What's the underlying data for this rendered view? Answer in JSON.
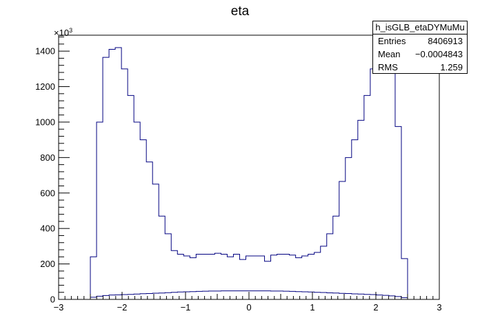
{
  "chart_data": {
    "type": "histogram",
    "title": "eta",
    "xlabel": "",
    "ylabel": "",
    "y_exponent_label": "×10",
    "y_exponent_power": "3",
    "xlim": [
      -3,
      3
    ],
    "ylim": [
      0,
      1490
    ],
    "x_ticks": [
      "−3",
      "−2",
      "−1",
      "0",
      "1",
      "2",
      "3"
    ],
    "y_ticks": [
      "0",
      "200",
      "400",
      "600",
      "800",
      "1000",
      "1200",
      "1400"
    ],
    "grid": false,
    "line_color": "#000080",
    "bin_edges": [
      -2.5,
      2.5
    ],
    "series": [
      {
        "values": [
          240,
          1000,
          1365,
          1410,
          1420,
          1300,
          1150,
          1000,
          900,
          775,
          650,
          470,
          370,
          275,
          255,
          245,
          235,
          255,
          255,
          255,
          260,
          255,
          240,
          255,
          225,
          245,
          245,
          245,
          215,
          250,
          255,
          255,
          250,
          235,
          245,
          255,
          265,
          300,
          370,
          470,
          665,
          800,
          900,
          1010,
          1150,
          1300,
          1400,
          1405,
          1405,
          975,
          230
        ]
      },
      {
        "values": [
          12,
          18,
          22,
          25,
          26,
          27,
          28,
          30,
          32,
          33,
          35,
          36,
          38,
          40,
          42,
          43,
          44,
          45,
          46,
          47,
          47,
          48,
          48,
          48,
          48,
          48,
          48,
          48,
          48,
          47,
          47,
          46,
          45,
          44,
          43,
          42,
          40,
          39,
          37,
          36,
          34,
          33,
          31,
          30,
          28,
          27,
          25,
          23,
          20,
          16,
          10
        ]
      }
    ]
  },
  "stats": {
    "name": "h_isGLB_etaDYMuMu",
    "rows": [
      {
        "label": "Entries",
        "value": "8406913"
      },
      {
        "label": "Mean",
        "value": "−0.0004843"
      },
      {
        "label": "RMS",
        "value": "1.259"
      }
    ]
  }
}
